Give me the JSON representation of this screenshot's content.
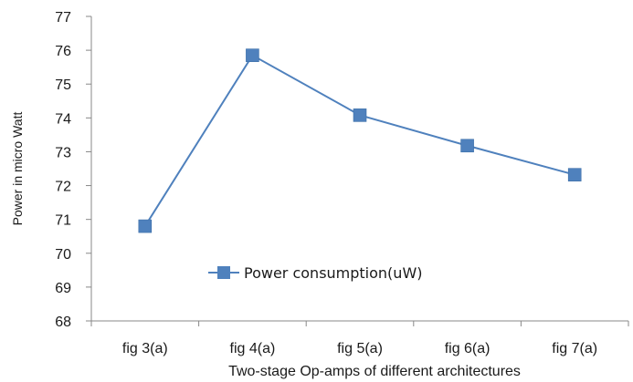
{
  "chart_data": {
    "type": "line",
    "categories": [
      "fig 3(a)",
      "fig 4(a)",
      "fig 5(a)",
      "fig 6(a)",
      "fig 7(a)"
    ],
    "series": [
      {
        "name": "Power consumption(uW)",
        "values": [
          70.8,
          75.85,
          74.08,
          73.18,
          72.32
        ]
      }
    ],
    "title": "",
    "xlabel": "Two-stage Op-amps of  different architectures",
    "ylabel": "Power in micro Watt",
    "ylim": [
      68,
      77
    ],
    "yticks": [
      68,
      69,
      70,
      71,
      72,
      73,
      74,
      75,
      76,
      77
    ],
    "grid": false,
    "legend_position": "inside-bottom-center",
    "colors": {
      "line": "#4f81bd",
      "marker": "#4f81bd",
      "axis": "#888888",
      "text": "#1a1a1a"
    }
  }
}
